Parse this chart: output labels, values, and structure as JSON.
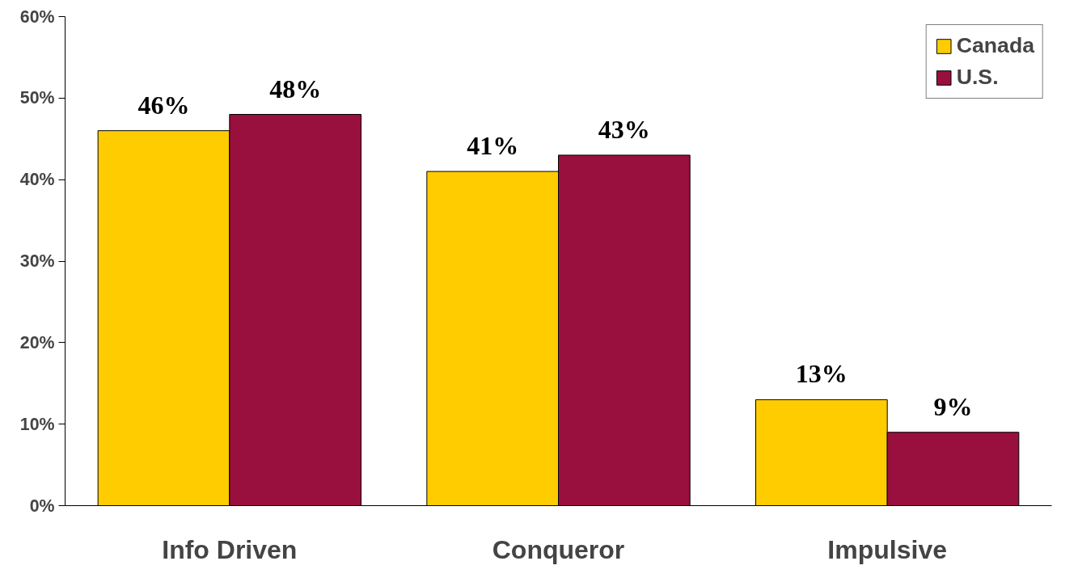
{
  "chart_data": {
    "type": "bar",
    "categories": [
      "Info Driven",
      "Conqueror",
      "Impulsive"
    ],
    "series": [
      {
        "name": "Canada",
        "color": "#ffcc00",
        "values": [
          46,
          41,
          13
        ],
        "value_labels": [
          "46%",
          "41%",
          "13%"
        ]
      },
      {
        "name": "U.S.",
        "color": "#990f3d",
        "values": [
          48,
          43,
          9
        ],
        "value_labels": [
          "48%",
          "43%",
          "9%"
        ]
      }
    ],
    "ylim": [
      0,
      60
    ],
    "yticks": [
      {
        "value": 0,
        "label": "0%"
      },
      {
        "value": 10,
        "label": "10%"
      },
      {
        "value": 20,
        "label": "20%"
      },
      {
        "value": 30,
        "label": "30%"
      },
      {
        "value": 40,
        "label": "40%"
      },
      {
        "value": 50,
        "label": "50%"
      },
      {
        "value": 60,
        "label": "60%"
      }
    ],
    "grid": false,
    "legend": "top right"
  }
}
